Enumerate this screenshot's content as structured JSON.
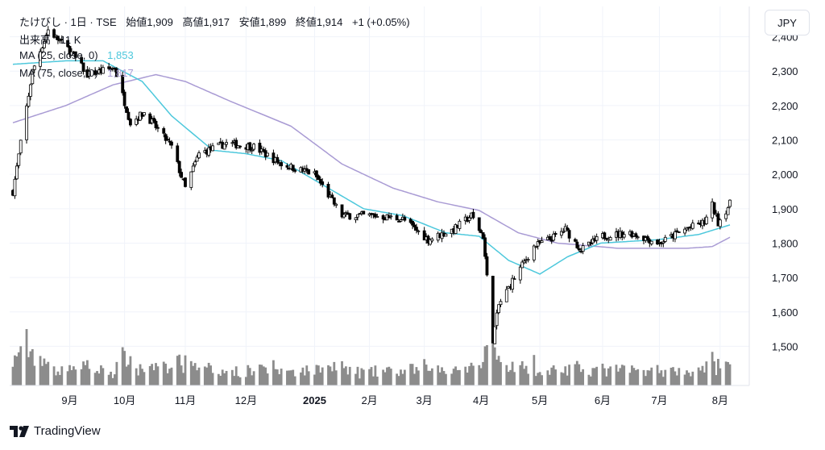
{
  "header": {
    "symbol_line": "たけびし · 1日 · TSE",
    "ohlc": [
      {
        "label": "始値",
        "value": "1,909"
      },
      {
        "label": "高値",
        "value": "1,917"
      },
      {
        "label": "安値",
        "value": "1,899"
      },
      {
        "label": "終値",
        "value": "1,914"
      }
    ],
    "change": "+1 (+0.05%)",
    "volume_label": "出来高",
    "volume_value": "11 K",
    "ma25_label": "MA (25, close, 0)",
    "ma25_value": "1,853",
    "ma75_label": "MA (75, close, 0)",
    "ma75_value": "1,817"
  },
  "currency_button": "JPY",
  "brand": "TradingView",
  "colors": {
    "ma25": "#4dc8dc",
    "ma75": "#a99bd4",
    "candle": "#000000",
    "volume": "#8c8c8c",
    "grid": "#f0f3fa"
  },
  "chart_data": {
    "type": "candlestick",
    "interval": "1日",
    "y_ticks": [
      "2,400",
      "2,300",
      "2,200",
      "2,100",
      "2,000",
      "1,900",
      "1,800",
      "1,700",
      "1,600",
      "1,500"
    ],
    "ylim": [
      1440,
      2460
    ],
    "x_ticks": [
      "9月",
      "10月",
      "11月",
      "12月",
      "2025",
      "2月",
      "3月",
      "4月",
      "5月",
      "6月",
      "7月",
      "8月"
    ],
    "grid": true,
    "series": [
      {
        "name": "MA (25, close, 0)",
        "last": 1853
      },
      {
        "name": "MA (75, close, 0)",
        "last": 1817
      }
    ],
    "price_path": [
      {
        "date": "2024-08-05",
        "close": 1950
      },
      {
        "date": "2024-08-15",
        "close": 2300
      },
      {
        "date": "2024-08-23",
        "close": 2420
      },
      {
        "date": "2024-09-03",
        "close": 2360
      },
      {
        "date": "2024-09-12",
        "close": 2290
      },
      {
        "date": "2024-09-26",
        "close": 2310
      },
      {
        "date": "2024-10-04",
        "close": 2150
      },
      {
        "date": "2024-10-11",
        "close": 2180
      },
      {
        "date": "2024-10-25",
        "close": 2080
      },
      {
        "date": "2024-11-01",
        "close": 1960
      },
      {
        "date": "2024-11-08",
        "close": 2060
      },
      {
        "date": "2024-11-22",
        "close": 2090
      },
      {
        "date": "2024-12-06",
        "close": 2080
      },
      {
        "date": "2024-12-20",
        "close": 2030
      },
      {
        "date": "2025-01-06",
        "close": 2000
      },
      {
        "date": "2025-01-20",
        "close": 1880
      },
      {
        "date": "2025-02-05",
        "close": 1880
      },
      {
        "date": "2025-02-20",
        "close": 1870
      },
      {
        "date": "2025-03-05",
        "close": 1810
      },
      {
        "date": "2025-03-18",
        "close": 1840
      },
      {
        "date": "2025-03-27",
        "close": 1880
      },
      {
        "date": "2025-04-02",
        "close": 1820
      },
      {
        "date": "2025-04-04",
        "close": 1700
      },
      {
        "date": "2025-04-07",
        "close": 1520
      },
      {
        "date": "2025-04-10",
        "close": 1620
      },
      {
        "date": "2025-04-18",
        "close": 1700
      },
      {
        "date": "2025-04-28",
        "close": 1790
      },
      {
        "date": "2025-05-09",
        "close": 1820
      },
      {
        "date": "2025-05-14",
        "close": 1840
      },
      {
        "date": "2025-05-22",
        "close": 1780
      },
      {
        "date": "2025-06-02",
        "close": 1820
      },
      {
        "date": "2025-06-16",
        "close": 1830
      },
      {
        "date": "2025-07-01",
        "close": 1800
      },
      {
        "date": "2025-07-14",
        "close": 1840
      },
      {
        "date": "2025-07-24",
        "close": 1860
      },
      {
        "date": "2025-07-28",
        "close": 1910
      },
      {
        "date": "2025-07-31",
        "close": 1860
      },
      {
        "date": "2025-08-06",
        "close": 1914
      }
    ],
    "ma25_path": [
      {
        "date": "2024-08-05",
        "close": 2320
      },
      {
        "date": "2024-09-01",
        "close": 2330
      },
      {
        "date": "2024-09-20",
        "close": 2330
      },
      {
        "date": "2024-10-10",
        "close": 2270
      },
      {
        "date": "2024-10-25",
        "close": 2170
      },
      {
        "date": "2024-11-15",
        "close": 2070
      },
      {
        "date": "2024-12-02",
        "close": 2060
      },
      {
        "date": "2024-12-20",
        "close": 2040
      },
      {
        "date": "2025-01-10",
        "close": 1970
      },
      {
        "date": "2025-01-31",
        "close": 1900
      },
      {
        "date": "2025-02-20",
        "close": 1880
      },
      {
        "date": "2025-03-14",
        "close": 1830
      },
      {
        "date": "2025-03-31",
        "close": 1820
      },
      {
        "date": "2025-04-15",
        "close": 1750
      },
      {
        "date": "2025-05-01",
        "close": 1710
      },
      {
        "date": "2025-05-15",
        "close": 1760
      },
      {
        "date": "2025-06-01",
        "close": 1800
      },
      {
        "date": "2025-06-30",
        "close": 1810
      },
      {
        "date": "2025-07-21",
        "close": 1825
      },
      {
        "date": "2025-08-06",
        "close": 1853
      }
    ],
    "ma75_path": [
      {
        "date": "2024-08-05",
        "close": 2150
      },
      {
        "date": "2024-09-01",
        "close": 2200
      },
      {
        "date": "2024-09-25",
        "close": 2260
      },
      {
        "date": "2024-10-17",
        "close": 2290
      },
      {
        "date": "2024-11-01",
        "close": 2270
      },
      {
        "date": "2024-11-25",
        "close": 2210
      },
      {
        "date": "2024-12-25",
        "close": 2140
      },
      {
        "date": "2025-01-20",
        "close": 2030
      },
      {
        "date": "2025-02-15",
        "close": 1960
      },
      {
        "date": "2025-03-10",
        "close": 1920
      },
      {
        "date": "2025-03-31",
        "close": 1895
      },
      {
        "date": "2025-04-20",
        "close": 1830
      },
      {
        "date": "2025-05-10",
        "close": 1800
      },
      {
        "date": "2025-06-10",
        "close": 1785
      },
      {
        "date": "2025-07-15",
        "close": 1785
      },
      {
        "date": "2025-07-28",
        "close": 1790
      },
      {
        "date": "2025-08-06",
        "close": 1817
      }
    ],
    "volume_ymax": 100000
  }
}
